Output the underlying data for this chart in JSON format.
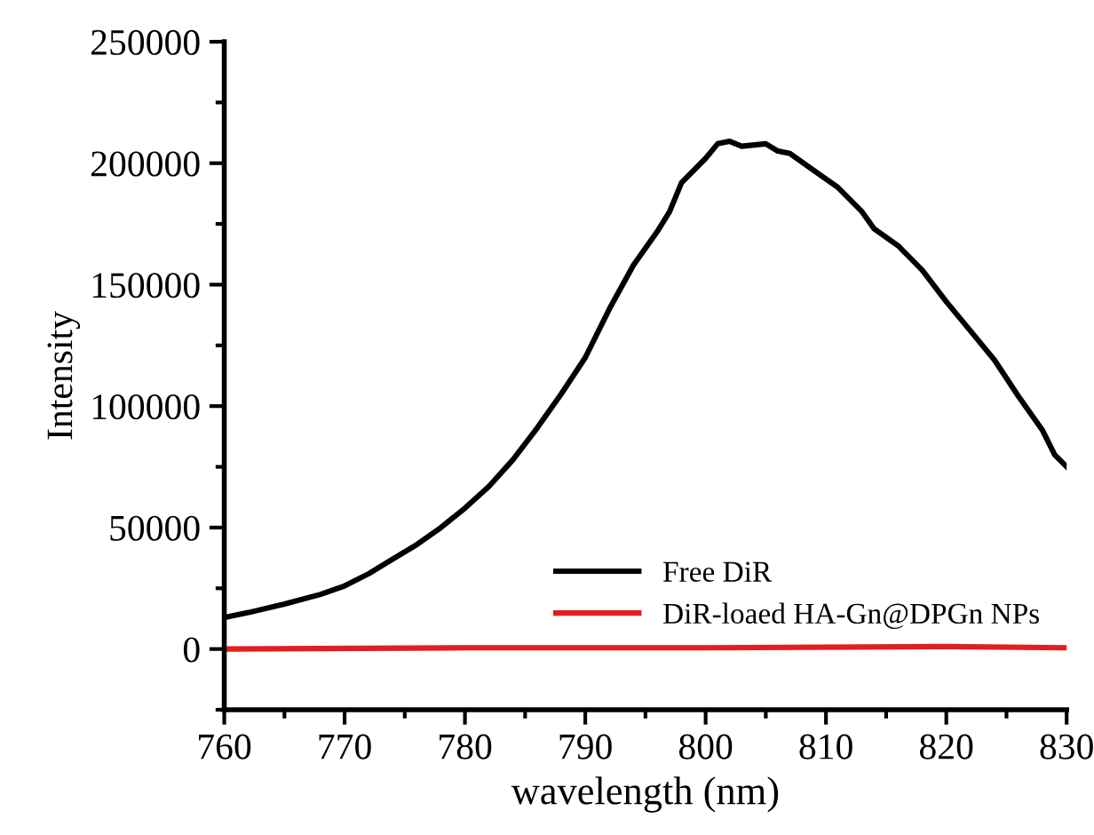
{
  "chart_data": {
    "type": "line",
    "xlabel": "wavelength (nm)",
    "ylabel": "Intensity",
    "xlim": [
      760,
      830
    ],
    "xticks": [
      760,
      770,
      780,
      790,
      800,
      810,
      820,
      830
    ],
    "ylim": [
      -25000,
      250000
    ],
    "yticks": [
      0,
      50000,
      100000,
      150000,
      200000,
      250000
    ],
    "legend": "bottom right",
    "marker": "none",
    "line_style": "solid",
    "grid": false,
    "series": [
      {
        "name": "Free DiR",
        "color": "#000000",
        "x": [
          760,
          762,
          765,
          768,
          770,
          772,
          774,
          776,
          778,
          780,
          782,
          784,
          786,
          788,
          790,
          792,
          794,
          796,
          797,
          798,
          800,
          801,
          802,
          803,
          805,
          806,
          807,
          809,
          811,
          813,
          814,
          816,
          818,
          820,
          822,
          824,
          826,
          828,
          829,
          830
        ],
        "values": [
          13000,
          15000,
          18500,
          22500,
          26000,
          31000,
          37000,
          43000,
          50000,
          58000,
          67000,
          78000,
          91000,
          105000,
          120000,
          140000,
          158000,
          172000,
          180000,
          192000,
          202000,
          208000,
          209000,
          207000,
          208000,
          205000,
          204000,
          197000,
          190000,
          180000,
          173000,
          166000,
          156000,
          143000,
          131000,
          119000,
          104000,
          90000,
          80000,
          75000
        ]
      },
      {
        "name": "DiR-loaed HA-Gn@DPGn NPs",
        "color": "#e02020",
        "x": [
          760,
          780,
          800,
          820,
          830
        ],
        "values": [
          0,
          500,
          500,
          1000,
          500
        ]
      }
    ]
  }
}
